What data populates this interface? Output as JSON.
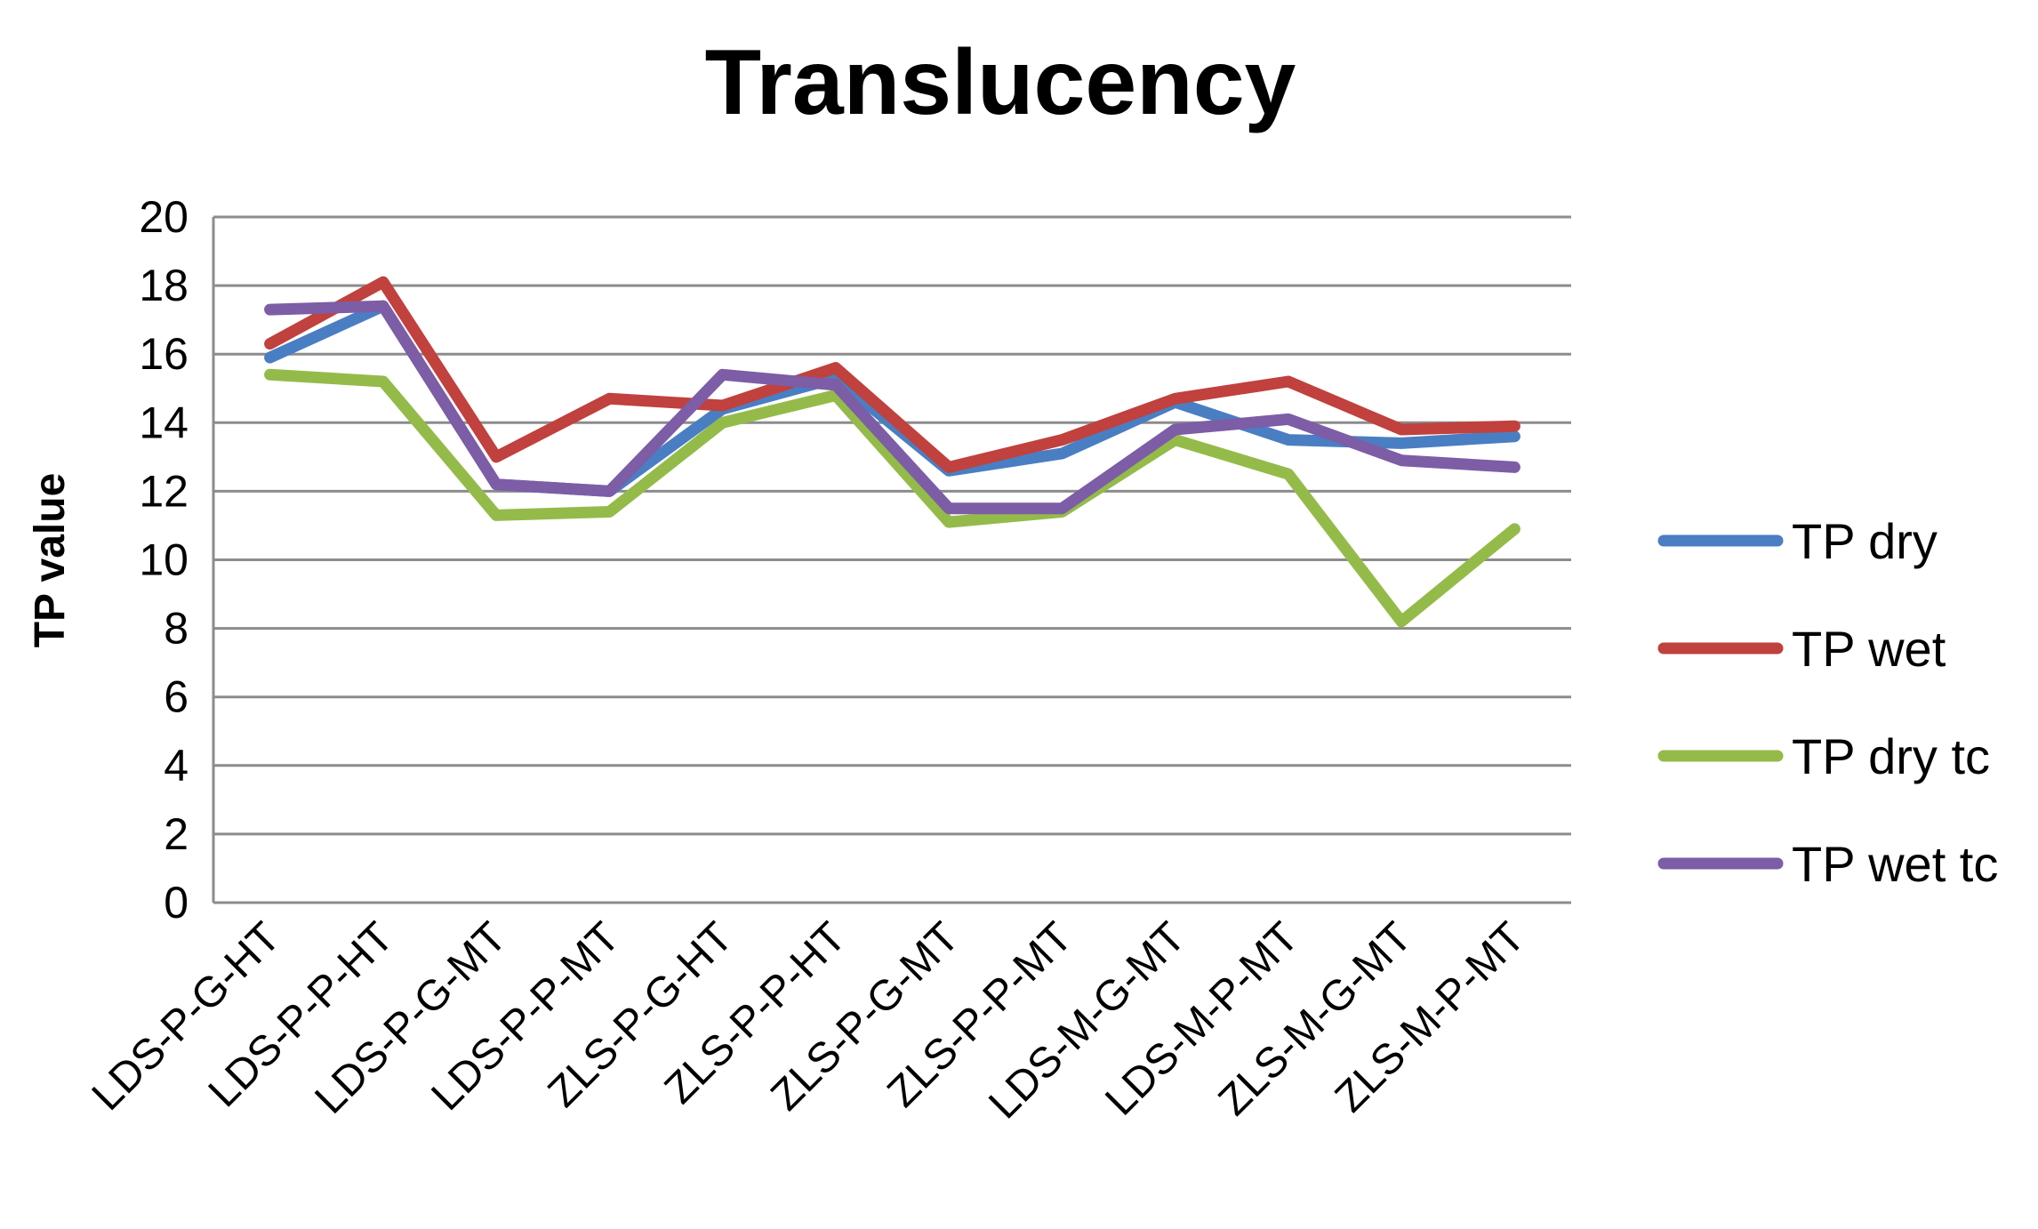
{
  "chart_data": {
    "type": "line",
    "title": "Translucency",
    "xlabel": "",
    "ylabel": "TP value",
    "ylim": [
      0,
      20
    ],
    "yticks": [
      0,
      2,
      4,
      6,
      8,
      10,
      12,
      14,
      16,
      18,
      20
    ],
    "grid": true,
    "legend_position": "right",
    "categories": [
      "LDS-P-G-HT",
      "LDS-P-P-HT",
      "LDS-P-G-MT",
      "LDS-P-P-MT",
      "ZLS-P-G-HT",
      "ZLS-P-P-HT",
      "ZLS-P-G-MT",
      "ZLS-P-P-MT",
      "LDS-M-G-MT",
      "LDS-M-P-MT",
      "ZLS-M-G-MT",
      "ZLS-M-P-MT"
    ],
    "series": [
      {
        "name": "TP dry",
        "color": "#4a7ec3",
        "values": [
          15.9,
          17.4,
          12.2,
          12.0,
          14.4,
          15.3,
          12.6,
          13.1,
          14.6,
          13.5,
          13.4,
          13.6
        ]
      },
      {
        "name": "TP wet",
        "color": "#c0413d",
        "values": [
          16.3,
          18.1,
          13.0,
          14.7,
          14.5,
          15.6,
          12.7,
          13.5,
          14.7,
          15.2,
          13.8,
          13.9
        ]
      },
      {
        "name": "TP dry tc",
        "color": "#94bb4a",
        "values": [
          15.4,
          15.2,
          11.3,
          11.4,
          14.0,
          14.8,
          11.1,
          11.4,
          13.5,
          12.5,
          8.2,
          10.9
        ]
      },
      {
        "name": "TP wet tc",
        "color": "#7d5da6",
        "values": [
          17.3,
          17.4,
          12.2,
          12.0,
          15.4,
          15.1,
          11.5,
          11.5,
          13.8,
          14.1,
          12.9,
          12.7
        ]
      }
    ]
  }
}
